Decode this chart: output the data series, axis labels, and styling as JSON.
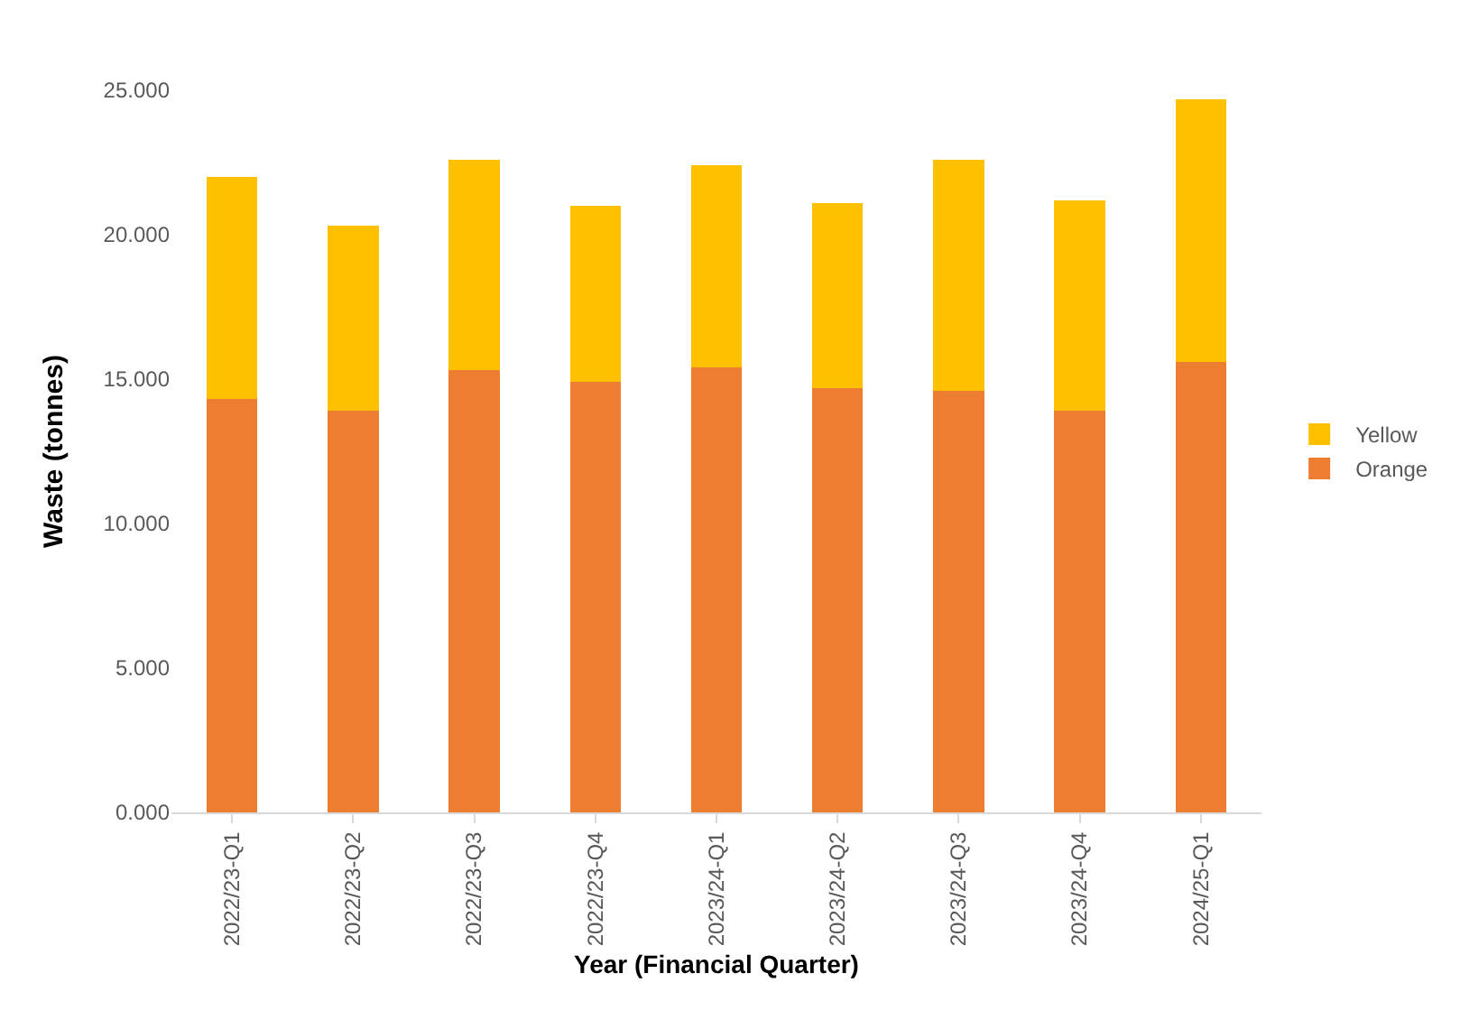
{
  "chart_data": {
    "type": "bar",
    "stacked": true,
    "xlabel": "Year (Financial Quarter)",
    "ylabel": "Waste (tonnes)",
    "categories": [
      "2022/23-Q1",
      "2022/23-Q2",
      "2022/23-Q3",
      "2022/23-Q4",
      "2023/24-Q1",
      "2023/24-Q2",
      "2023/24-Q3",
      "2023/24-Q4",
      "2024/25-Q1"
    ],
    "series": [
      {
        "name": "Orange",
        "color": "#ed7d31",
        "values": [
          14.3,
          13.9,
          15.3,
          14.9,
          15.4,
          14.7,
          14.6,
          13.9,
          15.6
        ]
      },
      {
        "name": "Yellow",
        "color": "#ffc000",
        "values": [
          7.7,
          6.4,
          7.3,
          6.1,
          7.0,
          6.4,
          8.0,
          7.3,
          9.1
        ]
      }
    ],
    "ylim": [
      0,
      25
    ],
    "yticks": [
      {
        "value": 0,
        "label": "0.000"
      },
      {
        "value": 5,
        "label": "5.000"
      },
      {
        "value": 10,
        "label": "10.000"
      },
      {
        "value": 15,
        "label": "15.000"
      },
      {
        "value": 20,
        "label": "20.000"
      },
      {
        "value": 25,
        "label": "25.000"
      }
    ],
    "grid": false,
    "legend": "right"
  }
}
